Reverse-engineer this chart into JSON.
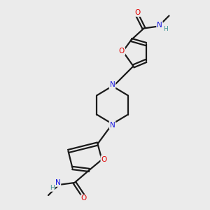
{
  "background_color": "#ebebeb",
  "bond_color": "#1a1a1a",
  "atom_colors": {
    "O": "#e00000",
    "N": "#1414e0",
    "H": "#3a9090",
    "C": "#1a1a1a"
  },
  "figsize": [
    3.0,
    3.0
  ],
  "dpi": 100
}
